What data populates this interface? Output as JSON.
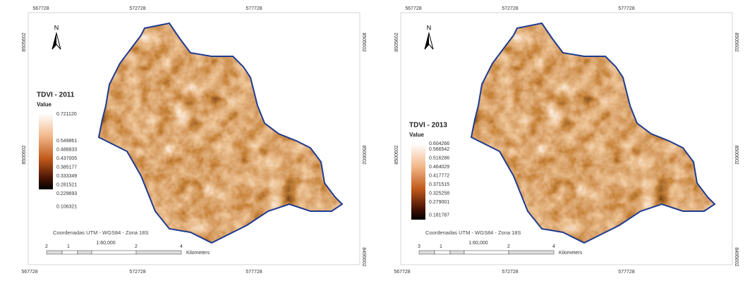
{
  "panels": [
    {
      "title": "TDVI - 2011",
      "value_label": "Value",
      "north": "N",
      "legend_max": "0.721120",
      "legend_labels": [
        "0.549861",
        "0.488833",
        "0.437005",
        "0.385177",
        "0.333349",
        "0.281521",
        "0.229693",
        "0.106321"
      ],
      "top_ticks": [
        "567728",
        "572728",
        "577728"
      ],
      "bottom_ticks": [
        "567728",
        "572728",
        "577728"
      ],
      "left_ticks": [
        "8505602",
        "8500602"
      ],
      "right_ticks": [
        "8505602",
        "8500602",
        "8495602"
      ],
      "coord_note": "Coordenadas  UTM  -  WGS84 -  Zona  18S",
      "scale": {
        "ratio": "1:60,000",
        "labels": [
          "2",
          "1",
          "2",
          "4"
        ],
        "unit": "Kilometers"
      }
    },
    {
      "title": "TDVI - 2013",
      "value_label": "Value",
      "north": "N",
      "legend_max": "0.604266",
      "legend_labels": [
        "0.566542",
        "0.516286",
        "0.464029",
        "0.417772",
        "0.371515",
        "0.325258",
        "0.279001",
        "0.181787"
      ],
      "top_ticks": [
        "567728",
        "572728",
        "577728"
      ],
      "bottom_ticks": [
        "567728",
        "572728",
        "577728"
      ],
      "left_ticks": [
        "8505602",
        "8500602"
      ],
      "right_ticks": [
        "8505602",
        "8500602",
        "8495602"
      ],
      "coord_note": "Coordenadas  UTM  -  WGS84 -  Zona  18S",
      "scale": {
        "ratio": "1:60,000",
        "labels": [
          "3",
          "1",
          "2",
          "4"
        ],
        "unit": "Kilometers"
      }
    }
  ]
}
